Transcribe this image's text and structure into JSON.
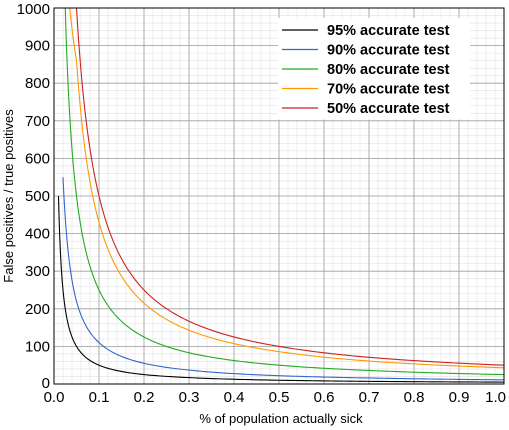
{
  "chart_data": {
    "type": "line",
    "title": "",
    "xlabel": "% of population actually sick",
    "ylabel": "False positives / true positives",
    "xlim": [
      0,
      1.0
    ],
    "ylim": [
      0,
      1000
    ],
    "x_ticks": [
      "0.0",
      "0.1",
      "0.2",
      "0.3",
      "0.4",
      "0.5",
      "0.6",
      "0.7",
      "0.8",
      "0.9",
      "1.0"
    ],
    "y_ticks": [
      "0",
      "100",
      "200",
      "300",
      "400",
      "500",
      "600",
      "700",
      "800",
      "900",
      "1000"
    ],
    "grid": true,
    "minor_grid": true,
    "legend_position": "top-right",
    "series": [
      {
        "name": "95% accurate test",
        "color": "#000000",
        "x": [
          0.01,
          0.02,
          0.05,
          0.1,
          0.2,
          0.3,
          0.5,
          0.7,
          1.0
        ],
        "values": [
          500,
          250,
          100,
          50,
          25,
          17,
          10,
          7,
          5
        ]
      },
      {
        "name": "90% accurate test",
        "color": "#3366cc",
        "x": [
          0.02,
          0.03,
          0.05,
          0.1,
          0.2,
          0.3,
          0.5,
          0.7,
          1.0
        ],
        "values": [
          550,
          370,
          220,
          110,
          55,
          37,
          22,
          16,
          11
        ]
      },
      {
        "name": "80% accurate test",
        "color": "#22aa22",
        "x": [
          0.025,
          0.03,
          0.05,
          0.1,
          0.2,
          0.3,
          0.5,
          0.7,
          1.0
        ],
        "values": [
          1000,
          830,
          500,
          250,
          125,
          83,
          50,
          36,
          25
        ]
      },
      {
        "name": "70% accurate test",
        "color": "#ff9900",
        "x": [
          0.035,
          0.05,
          0.1,
          0.2,
          0.3,
          0.5,
          0.7,
          1.0
        ],
        "values": [
          1000,
          860,
          430,
          215,
          143,
          86,
          61,
          43
        ]
      },
      {
        "name": "50% accurate test",
        "color": "#cc2222",
        "x": [
          0.05,
          0.1,
          0.2,
          0.3,
          0.5,
          0.7,
          1.0
        ],
        "values": [
          1000,
          500,
          250,
          167,
          100,
          71,
          50
        ]
      }
    ]
  }
}
